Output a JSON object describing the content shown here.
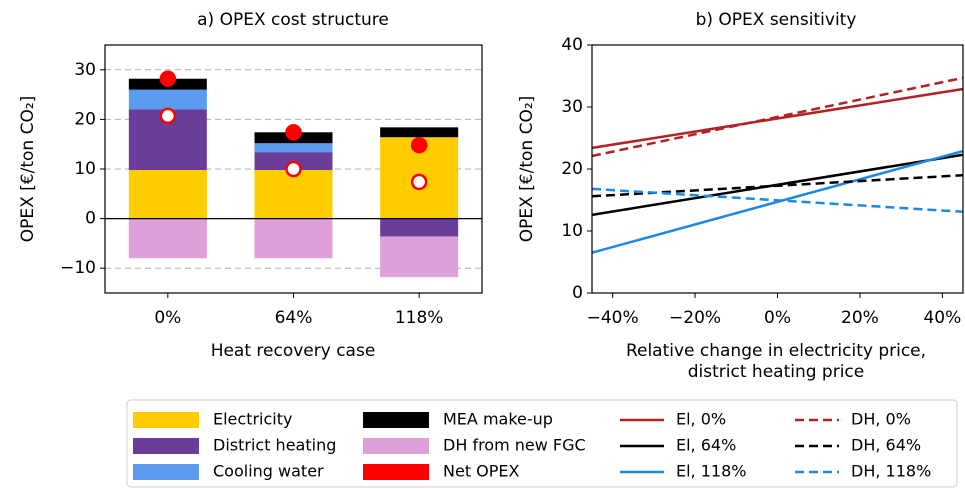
{
  "chart_data": [
    {
      "type": "bar",
      "title": "a) OPEX cost structure",
      "xlabel": "Heat recovery case",
      "ylabel": "OPEX [€/ton CO₂]",
      "categories": [
        "0%",
        "64%",
        "118%"
      ],
      "series": [
        {
          "name": "Electricity",
          "color": "#ffcc00",
          "values": [
            9.8,
            9.8,
            16.4
          ]
        },
        {
          "name": "District heating",
          "color": "#6a3d9a",
          "values": [
            12.2,
            3.6,
            -3.6
          ]
        },
        {
          "name": "Cooling water",
          "color": "#5b9bef",
          "values": [
            4,
            1.8,
            0
          ]
        },
        {
          "name": "MEA make-up",
          "color": "#000000",
          "values": [
            2.2,
            2.2,
            2
          ]
        },
        {
          "name": "DH from new FGC",
          "color": "#dda0d8",
          "values": [
            -8,
            -8,
            -8.2
          ]
        },
        {
          "name": "Net OPEX",
          "type": "scatter",
          "color": "#ff0000",
          "fill": "#ff0000",
          "values": [
            28.2,
            17.4,
            14.8
          ]
        },
        {
          "type": "scatter",
          "color": "#ff0000",
          "fill": "#ffffff",
          "values": [
            20.7,
            10,
            7.4
          ]
        }
      ],
      "ylim": [
        -15,
        35
      ],
      "yticks": [
        {
          "value": -10,
          "label": "−10"
        },
        0,
        10,
        20,
        30
      ],
      "grid": true
    },
    {
      "type": "line",
      "title": "b) OPEX sensitivity",
      "xlabel": [
        "Relative change in electricity price,",
        "district heating price"
      ],
      "ylabel": "OPEX [€/ton CO₂]",
      "x": [
        -45,
        45
      ],
      "series": [
        {
          "name": "El, 0%",
          "color": "#b22222",
          "dash": false,
          "values": [
            23.4,
            32.9
          ]
        },
        {
          "name": "El, 64%",
          "color": "#000000",
          "dash": false,
          "values": [
            12.6,
            22.3
          ]
        },
        {
          "name": "El, 118%",
          "color": "#1e88e5",
          "dash": false,
          "values": [
            6.5,
            22.9
          ]
        },
        {
          "name": "DH, 0%",
          "color": "#b22222",
          "dash": true,
          "values": [
            22.1,
            34.7
          ]
        },
        {
          "name": "DH, 64%",
          "color": "#000000",
          "dash": true,
          "values": [
            15.6,
            19.0
          ]
        },
        {
          "name": "DH, 118%",
          "color": "#1e88e5",
          "dash": true,
          "values": [
            16.8,
            13.1
          ]
        }
      ],
      "xlim": [
        -45,
        45
      ],
      "ylim": [
        0,
        40
      ],
      "xticks": [
        {
          "value": -40,
          "label": "−40%"
        },
        {
          "value": -20,
          "label": "−20%"
        },
        {
          "value": 0,
          "label": "0%"
        },
        {
          "value": 20,
          "label": "20%"
        },
        {
          "value": 40,
          "label": "40%"
        }
      ],
      "yticks": [
        0,
        10,
        20,
        30,
        40
      ],
      "grid": false
    }
  ]
}
